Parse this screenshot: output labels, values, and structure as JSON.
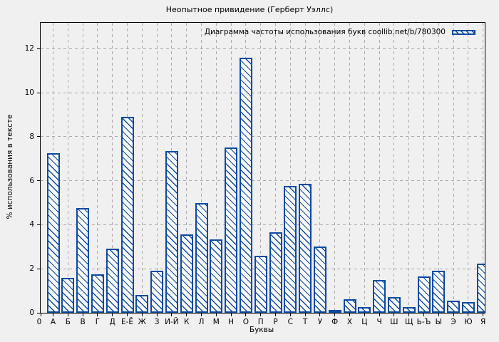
{
  "title": "Неопытное привидение (Герберт Уэллс)",
  "chart_data": {
    "type": "bar",
    "title": "Неопытное привидение (Герберт Уэллс)",
    "legend_label": "Диаграмма частоты использования букв coollib.net/b/780300",
    "legend_position": "top-right-inside",
    "xlabel": "Буквы",
    "ylabel": "% использования в тексте",
    "x_origin_label": "0",
    "categories": [
      "А",
      "Б",
      "В",
      "Г",
      "Д",
      "Е-Ё",
      "Ж",
      "З",
      "И-Й",
      "К",
      "Л",
      "М",
      "Н",
      "О",
      "П",
      "Р",
      "С",
      "Т",
      "У",
      "Ф",
      "Х",
      "Ц",
      "Ч",
      "Ш",
      "Щ",
      "Ь-Ъ",
      "Ы",
      "Э",
      "Ю",
      "Я"
    ],
    "values": [
      7.25,
      1.6,
      4.75,
      1.75,
      2.9,
      8.9,
      0.8,
      1.9,
      7.35,
      3.55,
      5.0,
      3.35,
      7.5,
      11.6,
      2.6,
      3.65,
      5.75,
      5.85,
      3.0,
      0.05,
      0.6,
      0.25,
      1.5,
      0.7,
      0.25,
      1.65,
      1.9,
      0.55,
      0.5,
      2.25
    ],
    "yticks": [
      0,
      2,
      4,
      6,
      8,
      10,
      12
    ],
    "ylim": [
      0,
      13.18
    ],
    "grid": true,
    "bar_style": "diagonal-hatch",
    "colors": {
      "bar": "#0b4aa2",
      "bar_interior": "#fafafa",
      "grid": "#a9a9a9",
      "background": "#f0f0f0",
      "axis": "#000000"
    }
  }
}
